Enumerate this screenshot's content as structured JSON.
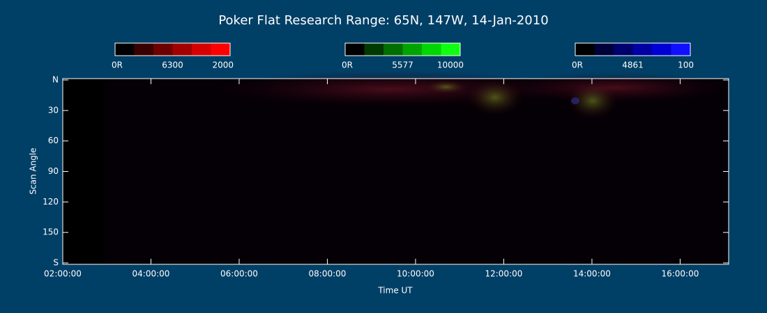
{
  "chart_data": {
    "type": "keogram",
    "title": "Poker Flat Research Range: 65N, 147W, 14-Jan-2010",
    "xlabel": "Time UT",
    "ylabel": "Scan Angle",
    "xlim": [
      2,
      17.1
    ],
    "xticks": [
      {
        "value": 2,
        "label": "02:00:00"
      },
      {
        "value": 4,
        "label": "04:00:00"
      },
      {
        "value": 6,
        "label": "06:00:00"
      },
      {
        "value": 8,
        "label": "08:00:00"
      },
      {
        "value": 10,
        "label": "10:00:00"
      },
      {
        "value": 12,
        "label": "12:00:00"
      },
      {
        "value": 14,
        "label": "14:00:00"
      },
      {
        "value": 16,
        "label": "16:00:00"
      }
    ],
    "ylim": [
      0,
      180
    ],
    "yticks": [
      {
        "value": 0,
        "label": "N"
      },
      30,
      60,
      90,
      120,
      150,
      {
        "value": 180,
        "label": "S"
      }
    ],
    "colorbars": [
      {
        "name": "6300",
        "ticks": [
          {
            "value": 0,
            "label": "0R"
          },
          2000
        ],
        "colors": [
          "#000000",
          "#3a0000",
          "#6e0000",
          "#a30000",
          "#d60000",
          "#ff0000"
        ]
      },
      {
        "name": "5577",
        "ticks": [
          {
            "value": 0,
            "label": "0R"
          },
          10000
        ],
        "colors": [
          "#000000",
          "#003a00",
          "#006e00",
          "#00a300",
          "#00d600",
          "#10ff10"
        ]
      },
      {
        "name": "4861",
        "ticks": [
          {
            "value": 0,
            "label": "0R"
          },
          100
        ],
        "colors": [
          "#000000",
          "#00003a",
          "#00006e",
          "#0000a3",
          "#0000d6",
          "#1010ff"
        ]
      }
    ]
  }
}
